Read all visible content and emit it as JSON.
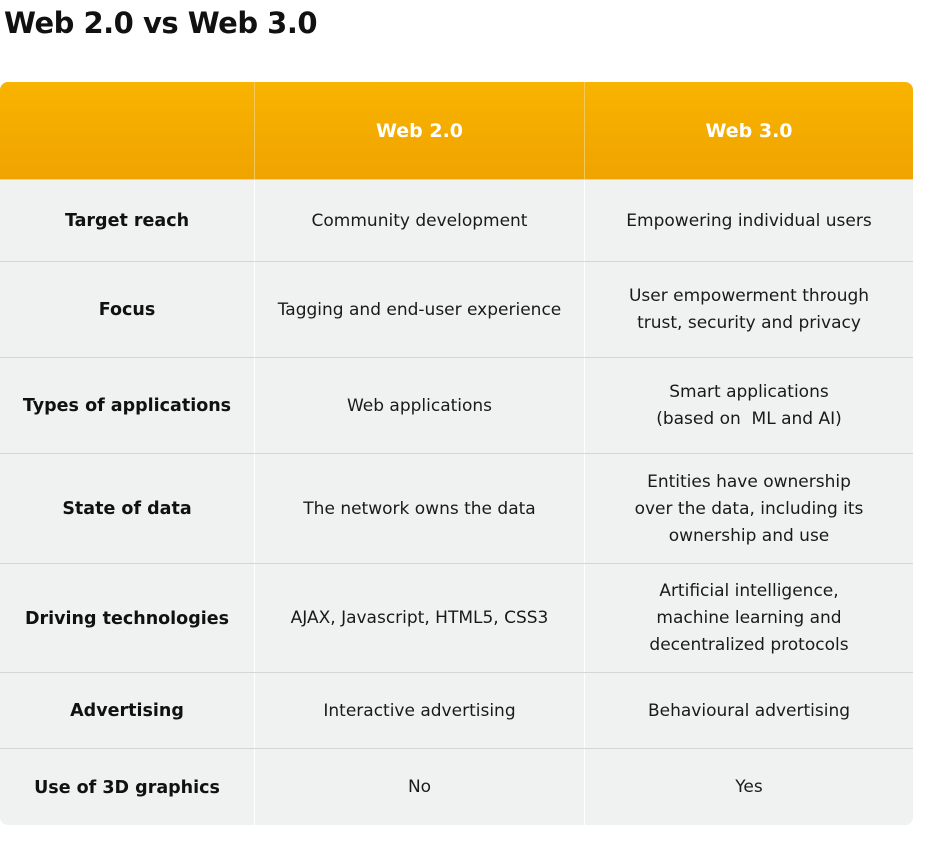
{
  "title": "Web 2.0 vs Web 3.0",
  "table": {
    "header": [
      "",
      "Web 2.0",
      "Web 3.0"
    ],
    "rows": [
      {
        "label": "Target reach",
        "web2": [
          "Community development"
        ],
        "web3": [
          "Empowering individual users"
        ]
      },
      {
        "label": "Focus",
        "web2": [
          "Tagging and end-user experience"
        ],
        "web3": [
          "User empowerment through",
          "trust, security and privacy"
        ]
      },
      {
        "label": "Types of applications",
        "web2": [
          "Web applications"
        ],
        "web3": [
          "Smart applications",
          "(based on  ML and AI)"
        ]
      },
      {
        "label": "State of data",
        "web2": [
          "The network owns the data"
        ],
        "web3": [
          "Entities have ownership",
          "over the data, including its",
          "ownership and use"
        ]
      },
      {
        "label": "Driving technologies",
        "web2": [
          "AJAX, Javascript, HTML5, CSS3"
        ],
        "web3": [
          "Artificial intelligence,",
          "machine learning and",
          "decentralized protocols"
        ]
      },
      {
        "label": "Advertising",
        "web2": [
          "Interactive advertising"
        ],
        "web3": [
          "Behavioural advertising"
        ]
      },
      {
        "label": "Use of 3D graphics",
        "web2": [
          "No"
        ],
        "web3": [
          "Yes"
        ]
      }
    ]
  },
  "colors": {
    "header_background": "#f5ad00",
    "header_text": "#ffffff",
    "row_background": "#f0f1f1",
    "row_divider": "#d6d6d6"
  }
}
